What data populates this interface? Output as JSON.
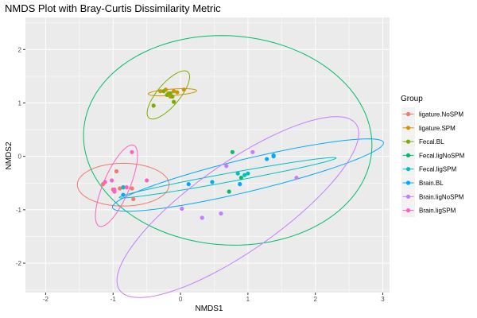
{
  "chart_data": {
    "type": "scatter",
    "title": "NMDS Plot with Bray-Curtis Dissimilarity Metric",
    "xlabel": "NMDS1",
    "ylabel": "NMDS2",
    "xlim": [
      -2.3,
      3.1
    ],
    "ylim": [
      -2.55,
      2.6
    ],
    "xticks": [
      -2,
      -1,
      0,
      1,
      2,
      3
    ],
    "yticks": [
      -2,
      -1,
      0,
      1,
      2
    ],
    "grid": true,
    "legend": {
      "title": "Group",
      "position": "right"
    },
    "series": [
      {
        "name": "ligature.NoSPM",
        "color": "#F8766D",
        "points": [
          [
            -0.95,
            -0.28
          ],
          [
            -1.15,
            -0.52
          ],
          [
            -1.0,
            -0.62
          ],
          [
            -0.9,
            -0.6
          ],
          [
            -0.85,
            -0.58
          ],
          [
            -0.72,
            -0.6
          ],
          [
            -0.7,
            -0.8
          ]
        ],
        "ellipse": {
          "cx": -0.85,
          "cy": -0.53,
          "rx": 0.68,
          "ry": 0.4,
          "angle": 0
        }
      },
      {
        "name": "ligature.SPM",
        "color": "#CD9600",
        "points": [
          [
            -0.3,
            1.22
          ],
          [
            -0.22,
            1.25
          ],
          [
            -0.18,
            1.18
          ],
          [
            -0.1,
            1.22
          ],
          [
            -0.05,
            1.2
          ],
          [
            0.05,
            1.25
          ],
          [
            -0.15,
            1.12
          ]
        ],
        "ellipse": {
          "cx": -0.12,
          "cy": 1.2,
          "rx": 0.36,
          "ry": 0.06,
          "angle": 5
        }
      },
      {
        "name": "Fecal.BL",
        "color": "#7CAE00",
        "points": [
          [
            -0.4,
            0.95
          ],
          [
            -0.25,
            1.22
          ],
          [
            -0.2,
            1.15
          ],
          [
            -0.12,
            1.12
          ],
          [
            -0.1,
            1.02
          ],
          [
            -0.15,
            1.18
          ]
        ],
        "ellipse": {
          "cx": -0.18,
          "cy": 1.15,
          "rx": 0.52,
          "ry": 0.18,
          "angle": 58
        }
      },
      {
        "name": "Fecal.ligNoSPM",
        "color": "#00BE67",
        "points": [
          [
            0.77,
            0.08
          ],
          [
            0.72,
            -0.66
          ],
          [
            0.9,
            -0.4
          ]
        ],
        "ellipse": {
          "cx": 0.7,
          "cy": 0.3,
          "rx": 2.15,
          "ry": 1.95,
          "angle": -14
        }
      },
      {
        "name": "Fecal.ligSPM",
        "color": "#00BFC4",
        "points": [
          [
            -0.85,
            -0.58
          ],
          [
            0.85,
            -0.32
          ],
          [
            0.95,
            -0.35
          ],
          [
            1.0,
            -0.32
          ],
          [
            1.38,
            0.02
          ]
        ],
        "ellipse": {
          "cx": 0.7,
          "cy": -0.4,
          "rx": 1.65,
          "ry": 0.08,
          "angle": 13
        }
      },
      {
        "name": "Brain.BL",
        "color": "#00A9FF",
        "points": [
          [
            -0.85,
            -0.72
          ],
          [
            0.12,
            -0.52
          ],
          [
            0.47,
            -0.48
          ],
          [
            0.88,
            -0.52
          ],
          [
            1.28,
            -0.05
          ],
          [
            1.38,
            0.0
          ]
        ],
        "ellipse": {
          "cx": 1.0,
          "cy": -0.35,
          "rx": 2.1,
          "ry": 0.3,
          "angle": 17
        }
      },
      {
        "name": "Brain.ligNoSPM",
        "color": "#C77CFF",
        "points": [
          [
            0.02,
            -0.98
          ],
          [
            0.32,
            -1.15
          ],
          [
            0.6,
            -1.07
          ],
          [
            0.68,
            -0.18
          ],
          [
            1.07,
            0.08
          ],
          [
            1.72,
            -0.4
          ]
        ],
        "ellipse": {
          "cx": 0.85,
          "cy": -0.95,
          "rx": 2.35,
          "ry": 0.75,
          "angle": 43
        }
      },
      {
        "name": "Brain.ligSPM",
        "color": "#FF61C3",
        "points": [
          [
            -1.12,
            -0.48
          ],
          [
            -1.02,
            -0.45
          ],
          [
            -0.98,
            -0.62
          ],
          [
            -0.98,
            -0.66
          ],
          [
            -0.72,
            0.08
          ],
          [
            -0.5,
            -0.45
          ],
          [
            -0.8,
            -0.58
          ]
        ],
        "ellipse": {
          "cx": -0.95,
          "cy": -0.55,
          "rx": 0.8,
          "ry": 0.2,
          "angle": 72
        }
      }
    ]
  }
}
